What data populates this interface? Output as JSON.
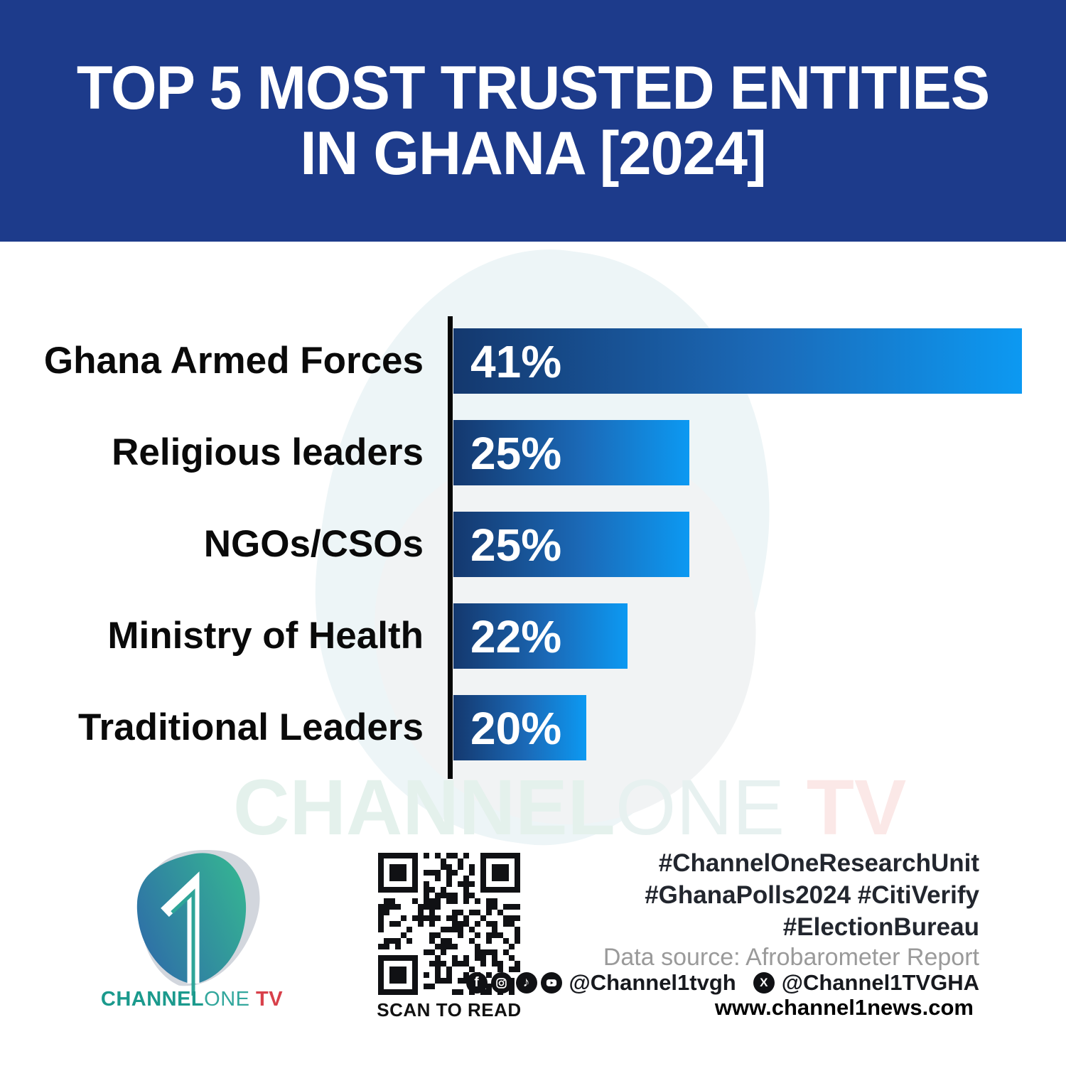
{
  "header": {
    "title_line1": "TOP 5 MOST TRUSTED ENTITIES",
    "title_line2": "IN GHANA [2024]"
  },
  "chart_data": {
    "type": "bar",
    "orientation": "horizontal",
    "title": "Top 5 Most Trusted Entities in Ghana [2024]",
    "categories": [
      "Ghana Armed Forces",
      "Religious leaders",
      "NGOs/CSOs",
      "Ministry of Health",
      "Traditional Leaders"
    ],
    "values": [
      41,
      25,
      25,
      22,
      20
    ],
    "value_labels": [
      "41%",
      "25%",
      "25%",
      "22%",
      "20%"
    ],
    "unit": "%",
    "xlim": [
      0,
      41
    ],
    "grid": false,
    "legend": false,
    "bar_width_fracs": [
      1,
      0.415,
      0.415,
      0.306,
      0.234
    ],
    "colors": {
      "bar_gradient_start": "#14386e",
      "bar_gradient_end": "#0c99f2",
      "axis": "#060606",
      "category_text": "#0a0a0a",
      "value_text": "#ffffff"
    }
  },
  "watermark": {
    "part_channel": "CHANNEL",
    "part_one": "ONE",
    "part_tv": " TV"
  },
  "footer": {
    "logo": {
      "one_glyph": "1",
      "brand_channel": "CHANNEL",
      "brand_one": "ONE",
      "brand_tv": " TV",
      "colors": {
        "channel": "#1b9a8d",
        "one": "#33a79d",
        "tv": "#d8404a",
        "pick_blue": "#2e6da8",
        "pick_teal": "#35b393"
      }
    },
    "qr_caption": "SCAN TO READ",
    "hashtags_line1": "#ChannelOneResearchUnit",
    "hashtags_line2": "#GhanaPolls2024 #CitiVerify",
    "hashtags_line3": "#ElectionBureau",
    "data_source": "Data source: Afrobarometer Report",
    "social": {
      "handle_main": "@Channel1tvgh",
      "handle_x": "@Channel1TVGHA",
      "icons": [
        "facebook-icon",
        "instagram-icon",
        "tiktok-icon",
        "youtube-icon",
        "x-icon"
      ],
      "facebook_glyph": "f",
      "tiktok_glyph": "♪",
      "x_glyph": "X"
    },
    "website": "www.channel1news.com"
  },
  "colors": {
    "header_bg": "#1d3b8b",
    "background": "#ffffff"
  }
}
